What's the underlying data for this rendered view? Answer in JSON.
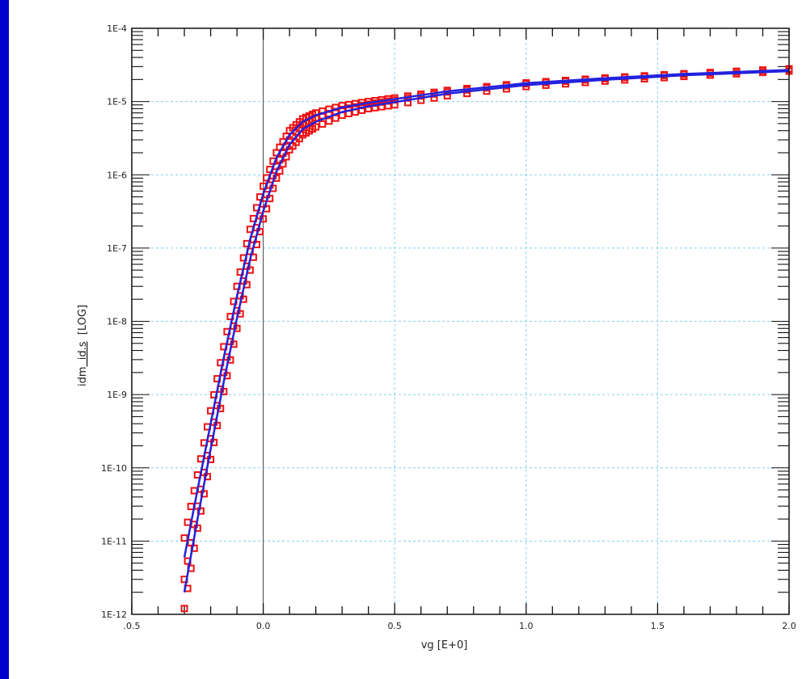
{
  "chart_data": {
    "type": "scatter",
    "xlabel": "vg  [E+0]",
    "ylabel": {
      "parts": [
        {
          "text": "id",
          "color": "#222222",
          "underline": false
        },
        {
          "text": "m",
          "color": "#222222",
          "underline": false
        },
        {
          "text": "  id.s",
          "color": "#222222",
          "underline": true
        },
        {
          "text": "  [LOG]",
          "color": "#222222",
          "underline": false
        }
      ]
    },
    "x_ticks": [
      {
        "value": -0.5,
        "label": ".0.5"
      },
      {
        "value": 0.0,
        "label": "0.0"
      },
      {
        "value": 0.5,
        "label": "0.5"
      },
      {
        "value": 1.0,
        "label": "1.0"
      },
      {
        "value": 1.5,
        "label": "1.5"
      },
      {
        "value": 2.0,
        "label": "2.0"
      }
    ],
    "y_ticks": [
      {
        "exp": -12,
        "label": "1E-12"
      },
      {
        "exp": -11,
        "label": "1E-11"
      },
      {
        "exp": -10,
        "label": "1E-10"
      },
      {
        "exp": -9,
        "label": "1E-9"
      },
      {
        "exp": -8,
        "label": "1E-8"
      },
      {
        "exp": -7,
        "label": "1E-7"
      },
      {
        "exp": -6,
        "label": "1E-6"
      },
      {
        "exp": -5,
        "label": "1E-5"
      },
      {
        "exp": -4,
        "label": "1E-4"
      }
    ],
    "xlim": [
      -0.5,
      2.0
    ],
    "ylim": [
      1e-12,
      0.0001
    ],
    "y_scale": "log",
    "grid": true,
    "colors": {
      "measured": "#ee1111",
      "simulated": "#2222dd",
      "grid": "#88ccee",
      "zero_line": "#444444"
    },
    "series": [
      {
        "name": "id.m",
        "style": "markers",
        "curves": [
          {
            "x": [
              -0.3,
              -0.25,
              -0.2,
              -0.15,
              -0.1,
              -0.05,
              0.0,
              0.05,
              0.1,
              0.15,
              0.2,
              0.3,
              0.4,
              0.5,
              0.7,
              1.0,
              1.3,
              1.6,
              2.0
            ],
            "y": [
              1.2e-12,
              1.5e-11,
              1.3e-10,
              1.1e-09,
              8e-09,
              5e-08,
              2.5e-07,
              9e-07,
              2.2e-06,
              3.5e-06,
              4.5e-06,
              6.5e-06,
              8e-06,
              9e-06,
              1.2e-05,
              1.6e-05,
              1.9e-05,
              2.2e-05,
              2.6e-05
            ]
          },
          {
            "x": [
              -0.3,
              -0.25,
              -0.2,
              -0.15,
              -0.1,
              -0.05,
              0.0,
              0.05,
              0.1,
              0.15,
              0.2,
              0.3,
              0.4,
              0.5,
              0.7,
              1.0,
              1.3,
              1.6,
              2.0
            ],
            "y": [
              3e-12,
              3e-11,
              2.5e-10,
              2e-09,
              1.4e-08,
              9e-08,
              4e-07,
              1.3e-06,
              3e-06,
              4.8e-06,
              6e-06,
              7.8e-06,
              9.2e-06,
              1.05e-05,
              1.35e-05,
              1.75e-05,
              2.05e-05,
              2.35e-05,
              2.75e-05
            ]
          },
          {
            "x": [
              -0.3,
              -0.25,
              -0.2,
              -0.15,
              -0.1,
              -0.05,
              0.0,
              0.05,
              0.1,
              0.15,
              0.2,
              0.3,
              0.4,
              0.5,
              0.7,
              1.0,
              1.3,
              1.6,
              2.0
            ],
            "y": [
              1.1e-11,
              8e-11,
              6e-10,
              4.5e-09,
              3e-08,
              1.8e-07,
              7e-07,
              2e-06,
              4e-06,
              5.8e-06,
              7e-06,
              8.8e-06,
              1e-05,
              1.12e-05,
              1.42e-05,
              1.8e-05,
              2.1e-05,
              2.4e-05,
              2.8e-05
            ]
          }
        ]
      },
      {
        "name": "id.s",
        "style": "line",
        "curves": [
          {
            "x": [
              -0.3,
              -0.25,
              -0.2,
              -0.15,
              -0.1,
              -0.05,
              0.0,
              0.05,
              0.1,
              0.15,
              0.2,
              0.3,
              0.4,
              0.5,
              0.7,
              1.0,
              1.3,
              1.6,
              2.0
            ],
            "y": [
              2e-12,
              2e-11,
              1.8e-10,
              1.5e-09,
              1.1e-08,
              7e-08,
              3.2e-07,
              1.1e-06,
              2.6e-06,
              4.2e-06,
              5.3e-06,
              7.2e-06,
              8.6e-06,
              9.8e-06,
              1.28e-05,
              1.68e-05,
              1.98e-05,
              2.28e-05,
              2.6e-05
            ]
          },
          {
            "x": [
              -0.3,
              -0.25,
              -0.2,
              -0.15,
              -0.1,
              -0.05,
              0.0,
              0.05,
              0.1,
              0.15,
              0.2,
              0.3,
              0.4,
              0.5,
              0.7,
              1.0,
              1.3,
              1.6,
              2.0
            ],
            "y": [
              6e-12,
              5e-11,
              4e-10,
              3.2e-09,
              2.2e-08,
              1.3e-07,
              5.5e-07,
              1.7e-06,
              3.5e-06,
              5.3e-06,
              6.5e-06,
              8.3e-06,
              9.6e-06,
              1.08e-05,
              1.38e-05,
              1.78e-05,
              2.08e-05,
              2.38e-05,
              2.7e-05
            ]
          }
        ]
      }
    ]
  }
}
